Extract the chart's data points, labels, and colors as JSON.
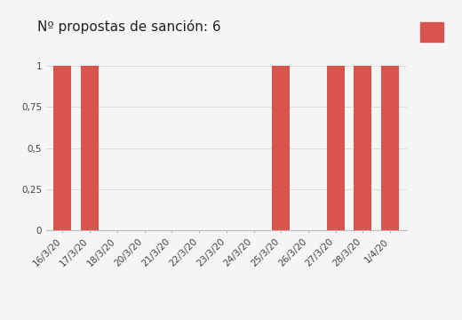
{
  "title": "Nº propostas de sanción: 6",
  "bar_color": "#d9534f",
  "legend_color": "#d9534f",
  "background_color": "#f5f5f5",
  "categories": [
    "16/3/20",
    "17/3/20",
    "18/3/20",
    "20/3/20",
    "21/3/20",
    "22/3/20",
    "23/3/20",
    "24/3/20",
    "25/3/20",
    "26/3/20",
    "27/3/20",
    "28/3/20",
    "1/4/20"
  ],
  "values": [
    1,
    1,
    0,
    0,
    0,
    0,
    0,
    0,
    1,
    0,
    1,
    1,
    1
  ],
  "ylim": [
    0,
    1.05
  ],
  "yticks": [
    0,
    0.25,
    0.5,
    0.75,
    1
  ],
  "ytick_labels": [
    "0",
    "0,25",
    "0,5",
    "0,75",
    "1"
  ],
  "grid_color": "#dddddd",
  "title_fontsize": 11,
  "tick_fontsize": 7.5,
  "bar_width": 0.65,
  "figsize": [
    5.2,
    3.6
  ],
  "dpi": 100
}
